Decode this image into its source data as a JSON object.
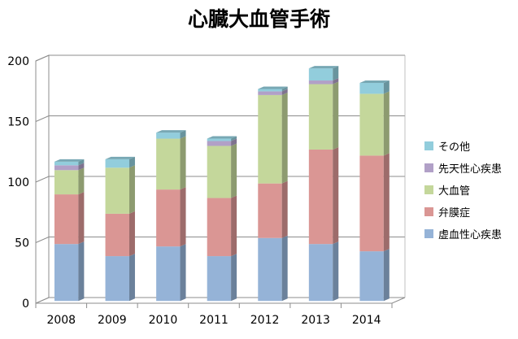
{
  "chart_data": {
    "type": "bar",
    "stacked": true,
    "three_d": true,
    "title": "心臓大血管手術",
    "xlabel": "",
    "ylabel": "",
    "categories": [
      "2008",
      "2009",
      "2010",
      "2011",
      "2012",
      "2013",
      "2014"
    ],
    "ylim": [
      0,
      200
    ],
    "yticks": [
      0,
      50,
      100,
      150,
      200
    ],
    "grid": true,
    "legend_position": "right",
    "series": [
      {
        "name": "虚血性心疾患",
        "color": "#95b3d7",
        "values": [
          47,
          37,
          45,
          37,
          52,
          47,
          41
        ]
      },
      {
        "name": "弁膜症",
        "color": "#da9694",
        "values": [
          41,
          35,
          47,
          48,
          45,
          78,
          79
        ]
      },
      {
        "name": "大血管",
        "color": "#c4d79b",
        "values": [
          20,
          38,
          42,
          43,
          73,
          54,
          51
        ]
      },
      {
        "name": "先天性心疾患",
        "color": "#b1a0c7",
        "values": [
          4,
          0,
          0,
          4,
          3,
          3,
          0
        ]
      },
      {
        "name": "その他",
        "color": "#92cddc",
        "values": [
          3,
          7,
          5,
          2,
          2,
          10,
          9
        ]
      }
    ],
    "legend_order": [
      4,
      3,
      2,
      1,
      0
    ]
  }
}
